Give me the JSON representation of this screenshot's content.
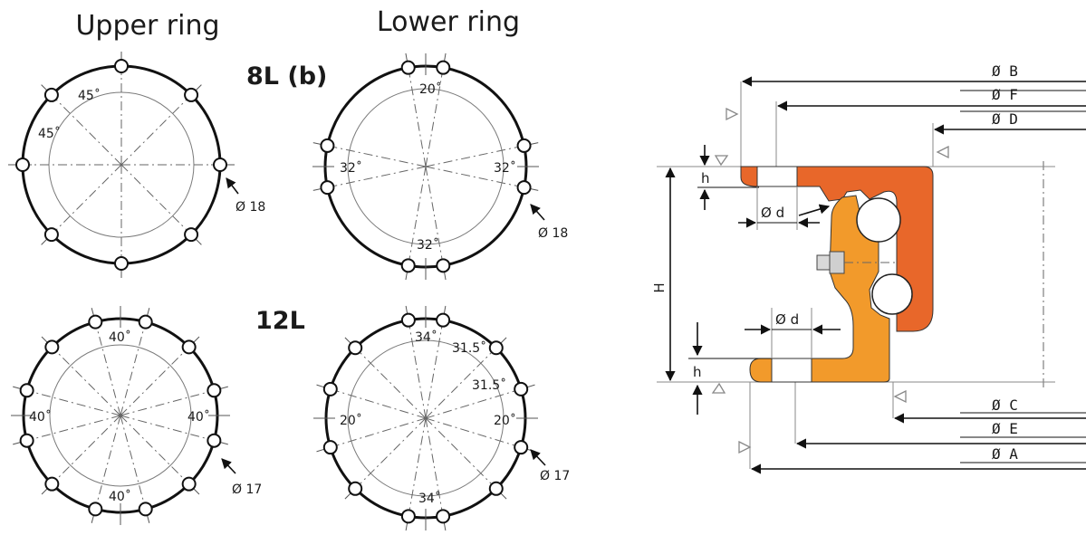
{
  "headers": {
    "upper": "Upper ring",
    "lower": "Lower ring"
  },
  "variants": {
    "v8": "8L (b)",
    "v12": "12L"
  },
  "patterns": [
    {
      "id": "upper-8l",
      "holes": 8,
      "hole_label": "Ø 18",
      "angle_labels": [
        "45˚",
        "45˚"
      ]
    },
    {
      "id": "lower-8l",
      "holes": 8,
      "hole_label": "Ø 18",
      "angle_labels": [
        "20˚",
        "32˚",
        "32˚",
        "32˚"
      ]
    },
    {
      "id": "upper-12l",
      "holes": 12,
      "hole_label": "Ø 17",
      "angle_labels": [
        "40˚",
        "40˚",
        "40˚",
        "40˚"
      ]
    },
    {
      "id": "lower-12l",
      "holes": 12,
      "hole_label": "Ø 17",
      "angle_labels": [
        "34˚",
        "31.5˚",
        "31.5˚",
        "20˚",
        "20˚",
        "34˚"
      ]
    }
  ],
  "section": {
    "dimensions_top": [
      "Ø B",
      "Ø F",
      "Ø D"
    ],
    "dimensions_bottom": [
      "Ø C",
      "Ø E",
      "Ø A"
    ],
    "height_label": "H",
    "rim_labels": [
      "h",
      "h"
    ],
    "bore_labels": [
      "Ø d",
      "Ø d"
    ],
    "colors": {
      "upper_ring": "#e8672a",
      "lower_ring": "#f29a2b"
    }
  }
}
